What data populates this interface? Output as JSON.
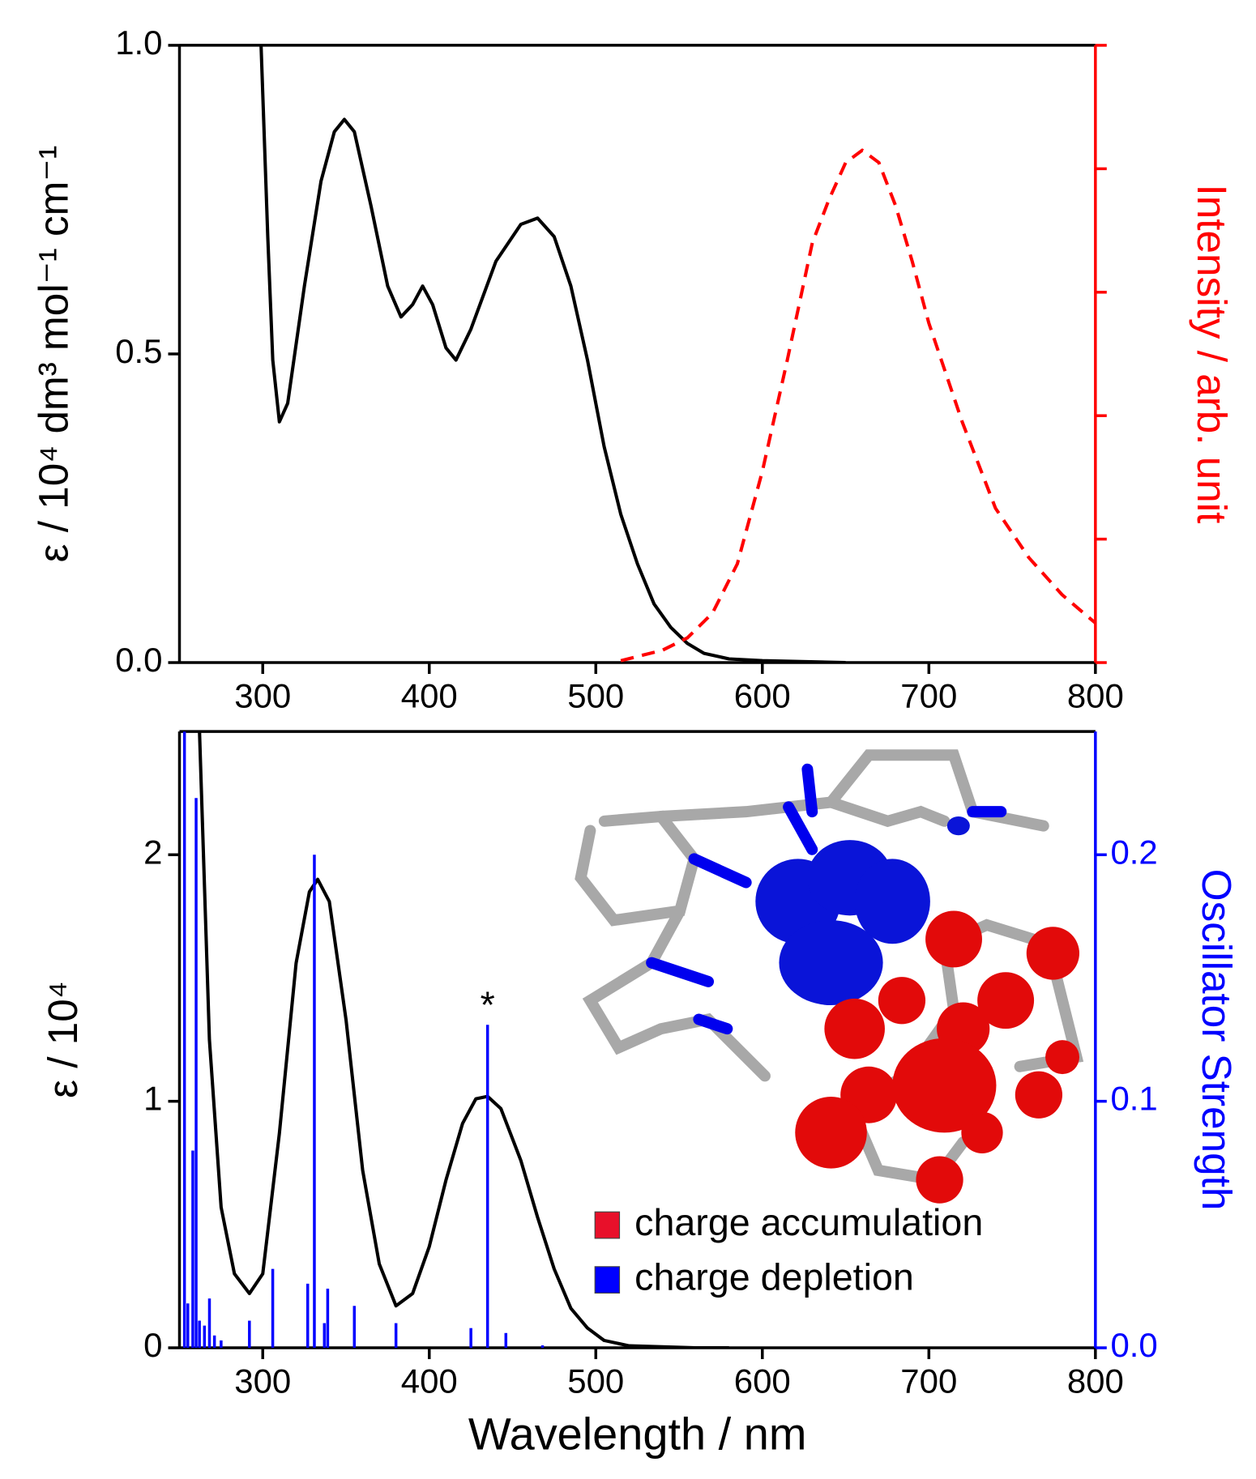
{
  "chart_data": [
    {
      "type": "line",
      "y_label": "ε / 10⁴ dm³ mol⁻¹ cm⁻¹",
      "y2_label": "Intensity / arb. unit",
      "y2_color": "#ff0000",
      "xlim": [
        250,
        800
      ],
      "xticks": [
        300,
        400,
        500,
        600,
        700,
        800
      ],
      "ylim": [
        0,
        1
      ],
      "yticks": [
        {
          "value": 0,
          "label": "0.0"
        },
        {
          "value": 0.5,
          "label": "0.5"
        },
        {
          "value": 1,
          "label": "1.0"
        }
      ],
      "y2lim": [
        0,
        1
      ],
      "y2ticks": [
        0,
        0.2,
        0.4,
        0.6,
        0.8,
        1
      ],
      "series": [
        {
          "color": "#000000",
          "x": [
            299,
            303,
            306,
            310,
            315,
            325,
            335,
            343,
            349,
            355,
            365,
            375,
            383,
            390,
            396,
            402,
            410,
            416,
            425,
            440,
            455,
            465,
            475,
            485,
            495,
            505,
            515,
            525,
            535,
            545,
            555,
            565,
            580,
            600,
            650
          ],
          "values": [
            1.0,
            0.69,
            0.49,
            0.39,
            0.42,
            0.61,
            0.78,
            0.86,
            0.88,
            0.86,
            0.74,
            0.61,
            0.56,
            0.58,
            0.61,
            0.58,
            0.51,
            0.49,
            0.54,
            0.65,
            0.71,
            0.72,
            0.69,
            0.61,
            0.49,
            0.35,
            0.24,
            0.16,
            0.095,
            0.057,
            0.031,
            0.015,
            0.006,
            0.003,
            0.0
          ]
        },
        {
          "color": "#ff0000",
          "line_style": "dashed",
          "axis": "y2",
          "x": [
            515,
            540,
            555,
            570,
            585,
            600,
            615,
            630,
            640,
            650,
            660,
            670,
            680,
            690,
            700,
            720,
            740,
            760,
            780,
            800
          ],
          "values": [
            0.003,
            0.02,
            0.04,
            0.08,
            0.16,
            0.31,
            0.49,
            0.68,
            0.75,
            0.81,
            0.83,
            0.81,
            0.74,
            0.65,
            0.55,
            0.39,
            0.25,
            0.17,
            0.11,
            0.064
          ]
        }
      ]
    },
    {
      "type": "line",
      "x_label": "Wavelength / nm",
      "y_label": "ε / 10⁴",
      "y2_label": "Oscillator Strength",
      "y2_color": "#0000ff",
      "xlim": [
        250,
        800
      ],
      "xticks": [
        300,
        400,
        500,
        600,
        700,
        800
      ],
      "ylim": [
        0,
        2.5
      ],
      "yticks": [
        0,
        1,
        2
      ],
      "y2lim": [
        0,
        0.25
      ],
      "y2ticks": [
        {
          "value": 0,
          "label": "0.0"
        },
        0.1,
        0.2
      ],
      "series": [
        {
          "color": "#000000",
          "x": [
            262,
            268,
            275,
            283,
            292,
            300,
            310,
            320,
            328,
            333,
            340,
            350,
            360,
            370,
            380,
            390,
            400,
            410,
            420,
            428,
            435,
            443,
            455,
            465,
            475,
            485,
            495,
            505,
            520,
            560,
            580
          ],
          "values": [
            2.5,
            1.25,
            0.57,
            0.3,
            0.22,
            0.3,
            0.87,
            1.56,
            1.85,
            1.9,
            1.81,
            1.33,
            0.72,
            0.34,
            0.17,
            0.22,
            0.41,
            0.68,
            0.91,
            1.01,
            1.02,
            0.97,
            0.76,
            0.53,
            0.32,
            0.16,
            0.08,
            0.03,
            0.008,
            0.0,
            0.0
          ]
        },
        {
          "type": "stem",
          "color": "#0000ff",
          "axis": "y2",
          "x": [
            253,
            255,
            258,
            260,
            262,
            265,
            268,
            271,
            275,
            292,
            306,
            327,
            331,
            337,
            339,
            355,
            380,
            425,
            435,
            446,
            468
          ],
          "values": [
            0.25,
            0.018,
            0.08,
            0.223,
            0.011,
            0.009,
            0.02,
            0.005,
            0.003,
            0.011,
            0.032,
            0.026,
            0.2,
            0.01,
            0.024,
            0.017,
            0.01,
            0.008,
            0.131,
            0.006,
            0.001
          ]
        }
      ],
      "annotations": [
        {
          "text": "*",
          "x": 435,
          "y": 0.131,
          "axis": "y2"
        }
      ],
      "legend": "lower right",
      "legend_items": [
        {
          "name": "charge accumulation",
          "color": "#e8102a"
        },
        {
          "name": "charge depletion",
          "color": "#0000ff"
        }
      ]
    }
  ]
}
